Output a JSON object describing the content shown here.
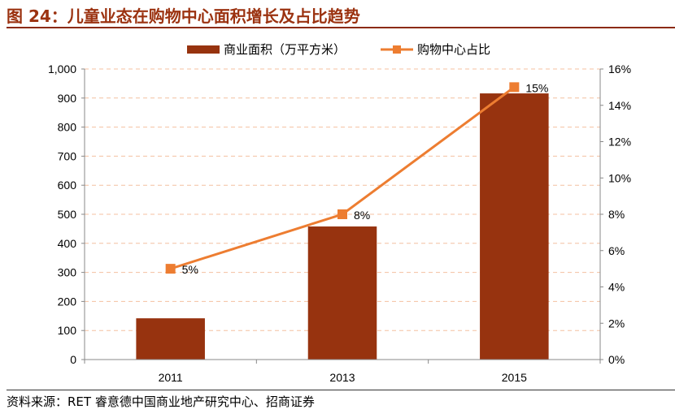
{
  "title": "图 24：儿童业态在购物中心面积增长及占比趋势",
  "source": "资料来源：RET 睿意德中国商业地产研究中心、招商证券",
  "chart_data": {
    "type": "bar+line",
    "categories": [
      "2011",
      "2013",
      "2015"
    ],
    "series": [
      {
        "name": "商业面积（万平方米）",
        "type": "bar",
        "axis": "left",
        "values": [
          142,
          458,
          916
        ],
        "color": "#97330f"
      },
      {
        "name": "购物中心占比",
        "type": "line",
        "axis": "right",
        "values": [
          5,
          8,
          15
        ],
        "labels": [
          "5%",
          "8%",
          "15%"
        ],
        "color": "#ed7d31"
      }
    ],
    "y_left": {
      "ylim": [
        0,
        1000
      ],
      "ticks": [
        "0",
        "100",
        "200",
        "300",
        "400",
        "500",
        "600",
        "700",
        "800",
        "900",
        "1,000"
      ]
    },
    "y_right": {
      "ylim": [
        0,
        16
      ],
      "ticks": [
        "0%",
        "2%",
        "4%",
        "6%",
        "8%",
        "10%",
        "12%",
        "14%",
        "16%"
      ]
    },
    "grid": true,
    "legend": "top"
  }
}
